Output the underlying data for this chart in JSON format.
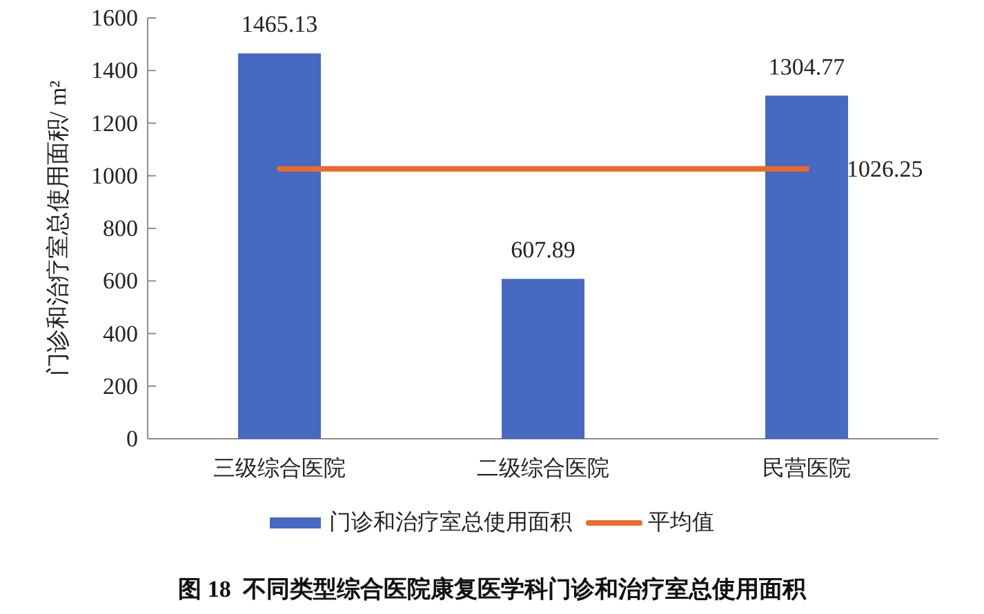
{
  "chart_data": {
    "type": "bar",
    "title": "图 18  不同类型综合医院康复医学科门诊和治疗室总使用面积",
    "ylabel": "门诊和治疗室总使用面积/ m²",
    "categories": [
      "三级综合医院",
      "二级综合医院",
      "民营医院"
    ],
    "series": [
      {
        "name": "门诊和治疗室总使用面积",
        "color": "#4669c1",
        "values": [
          1465.13,
          607.89,
          1304.77
        ],
        "value_labels": [
          "1465.13",
          "607.89",
          "1304.77"
        ]
      },
      {
        "name": "平均值",
        "type": "line",
        "color": "#eb6a2c",
        "values": [
          1026.25,
          1026.25,
          1026.25
        ],
        "value_labels": [
          null,
          null,
          "1026.25"
        ]
      }
    ],
    "ylim": [
      0,
      1600
    ],
    "yticks": [
      0,
      200,
      400,
      600,
      800,
      1000,
      1200,
      1400,
      1600
    ],
    "legend": "bottom"
  }
}
